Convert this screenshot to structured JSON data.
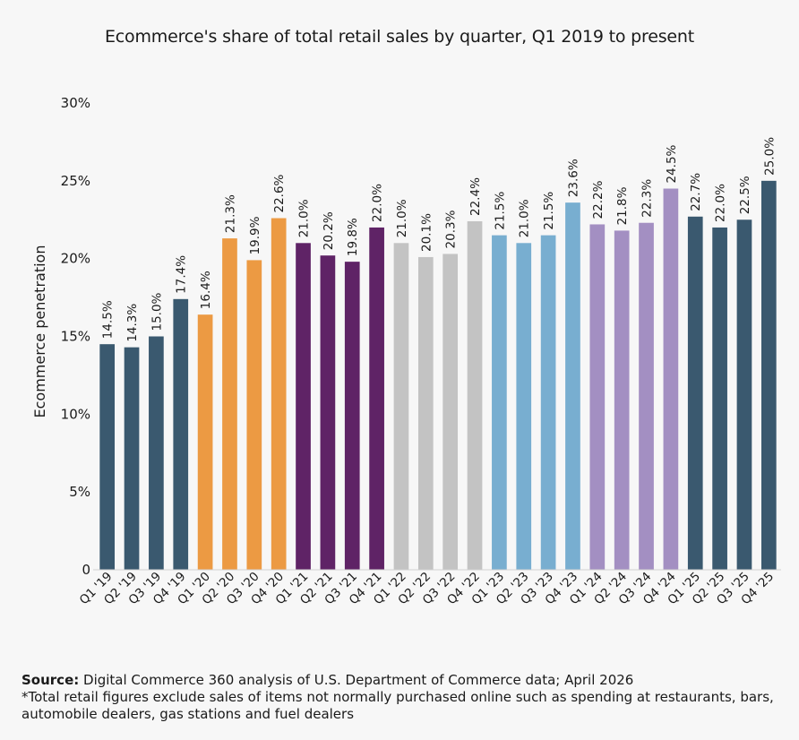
{
  "chart_data": {
    "type": "bar",
    "title": "Ecommerce's share of total retail sales by quarter, Q1 2019 to present",
    "xlabel": "",
    "ylabel": "Ecommerce penetration",
    "ylim": [
      0,
      30
    ],
    "yticks": [
      "0",
      "5%",
      "10%",
      "15%",
      "20%",
      "25%",
      "30%"
    ],
    "ytick_values": [
      0,
      5,
      10,
      15,
      20,
      25,
      30
    ],
    "categories": [
      "Q1 '19",
      "Q2 '19",
      "Q3 '19",
      "Q4 '19",
      "Q1 '20",
      "Q2 '20",
      "Q3 '20",
      "Q4 '20",
      "Q1 '21",
      "Q2 '21",
      "Q3 '21",
      "Q4 '21",
      "Q1 '22",
      "Q2 '22",
      "Q3 '22",
      "Q4 '22",
      "Q1 '23",
      "Q2 '23",
      "Q3 '23",
      "Q4 '23",
      "Q1 '24",
      "Q2 '24",
      "Q3 '24",
      "Q4 '24",
      "Q1 '25",
      "Q2 '25",
      "Q3 '25",
      "Q4 '25"
    ],
    "values": [
      14.5,
      14.3,
      15.0,
      17.4,
      16.4,
      21.3,
      19.9,
      22.6,
      21.0,
      20.2,
      19.8,
      22.0,
      21.0,
      20.1,
      20.3,
      22.4,
      21.5,
      21.0,
      21.5,
      23.6,
      22.2,
      21.8,
      22.3,
      24.5,
      22.7,
      22.0,
      22.5,
      25.0
    ],
    "labels": [
      "14.5%",
      "14.3%",
      "15.0%",
      "17.4%",
      "16.4%",
      "21.3%",
      "19.9%",
      "22.6%",
      "21.0%",
      "20.2%",
      "19.8%",
      "22.0%",
      "21.0%",
      "20.1%",
      "20.3%",
      "22.4%",
      "21.5%",
      "21.0%",
      "21.5%",
      "23.6%",
      "22.2%",
      "21.8%",
      "22.3%",
      "24.5%",
      "22.7%",
      "22.0%",
      "22.5%",
      "25.0%"
    ],
    "year_colors": [
      "#3a596f",
      "#ec9a43",
      "#5f2366",
      "#c3c3c3",
      "#78aed0",
      "#a38fc2",
      "#3a596f"
    ],
    "grid": false,
    "legend": "none"
  },
  "footer": {
    "source_label": "Source:",
    "source_text": " Digital Commerce 360 analysis of U.S. Department of Commerce data; April 2026",
    "note": "*Total retail figures exclude sales of items not normally purchased online such as spending at restaurants, bars, automobile dealers, gas stations and fuel dealers"
  }
}
